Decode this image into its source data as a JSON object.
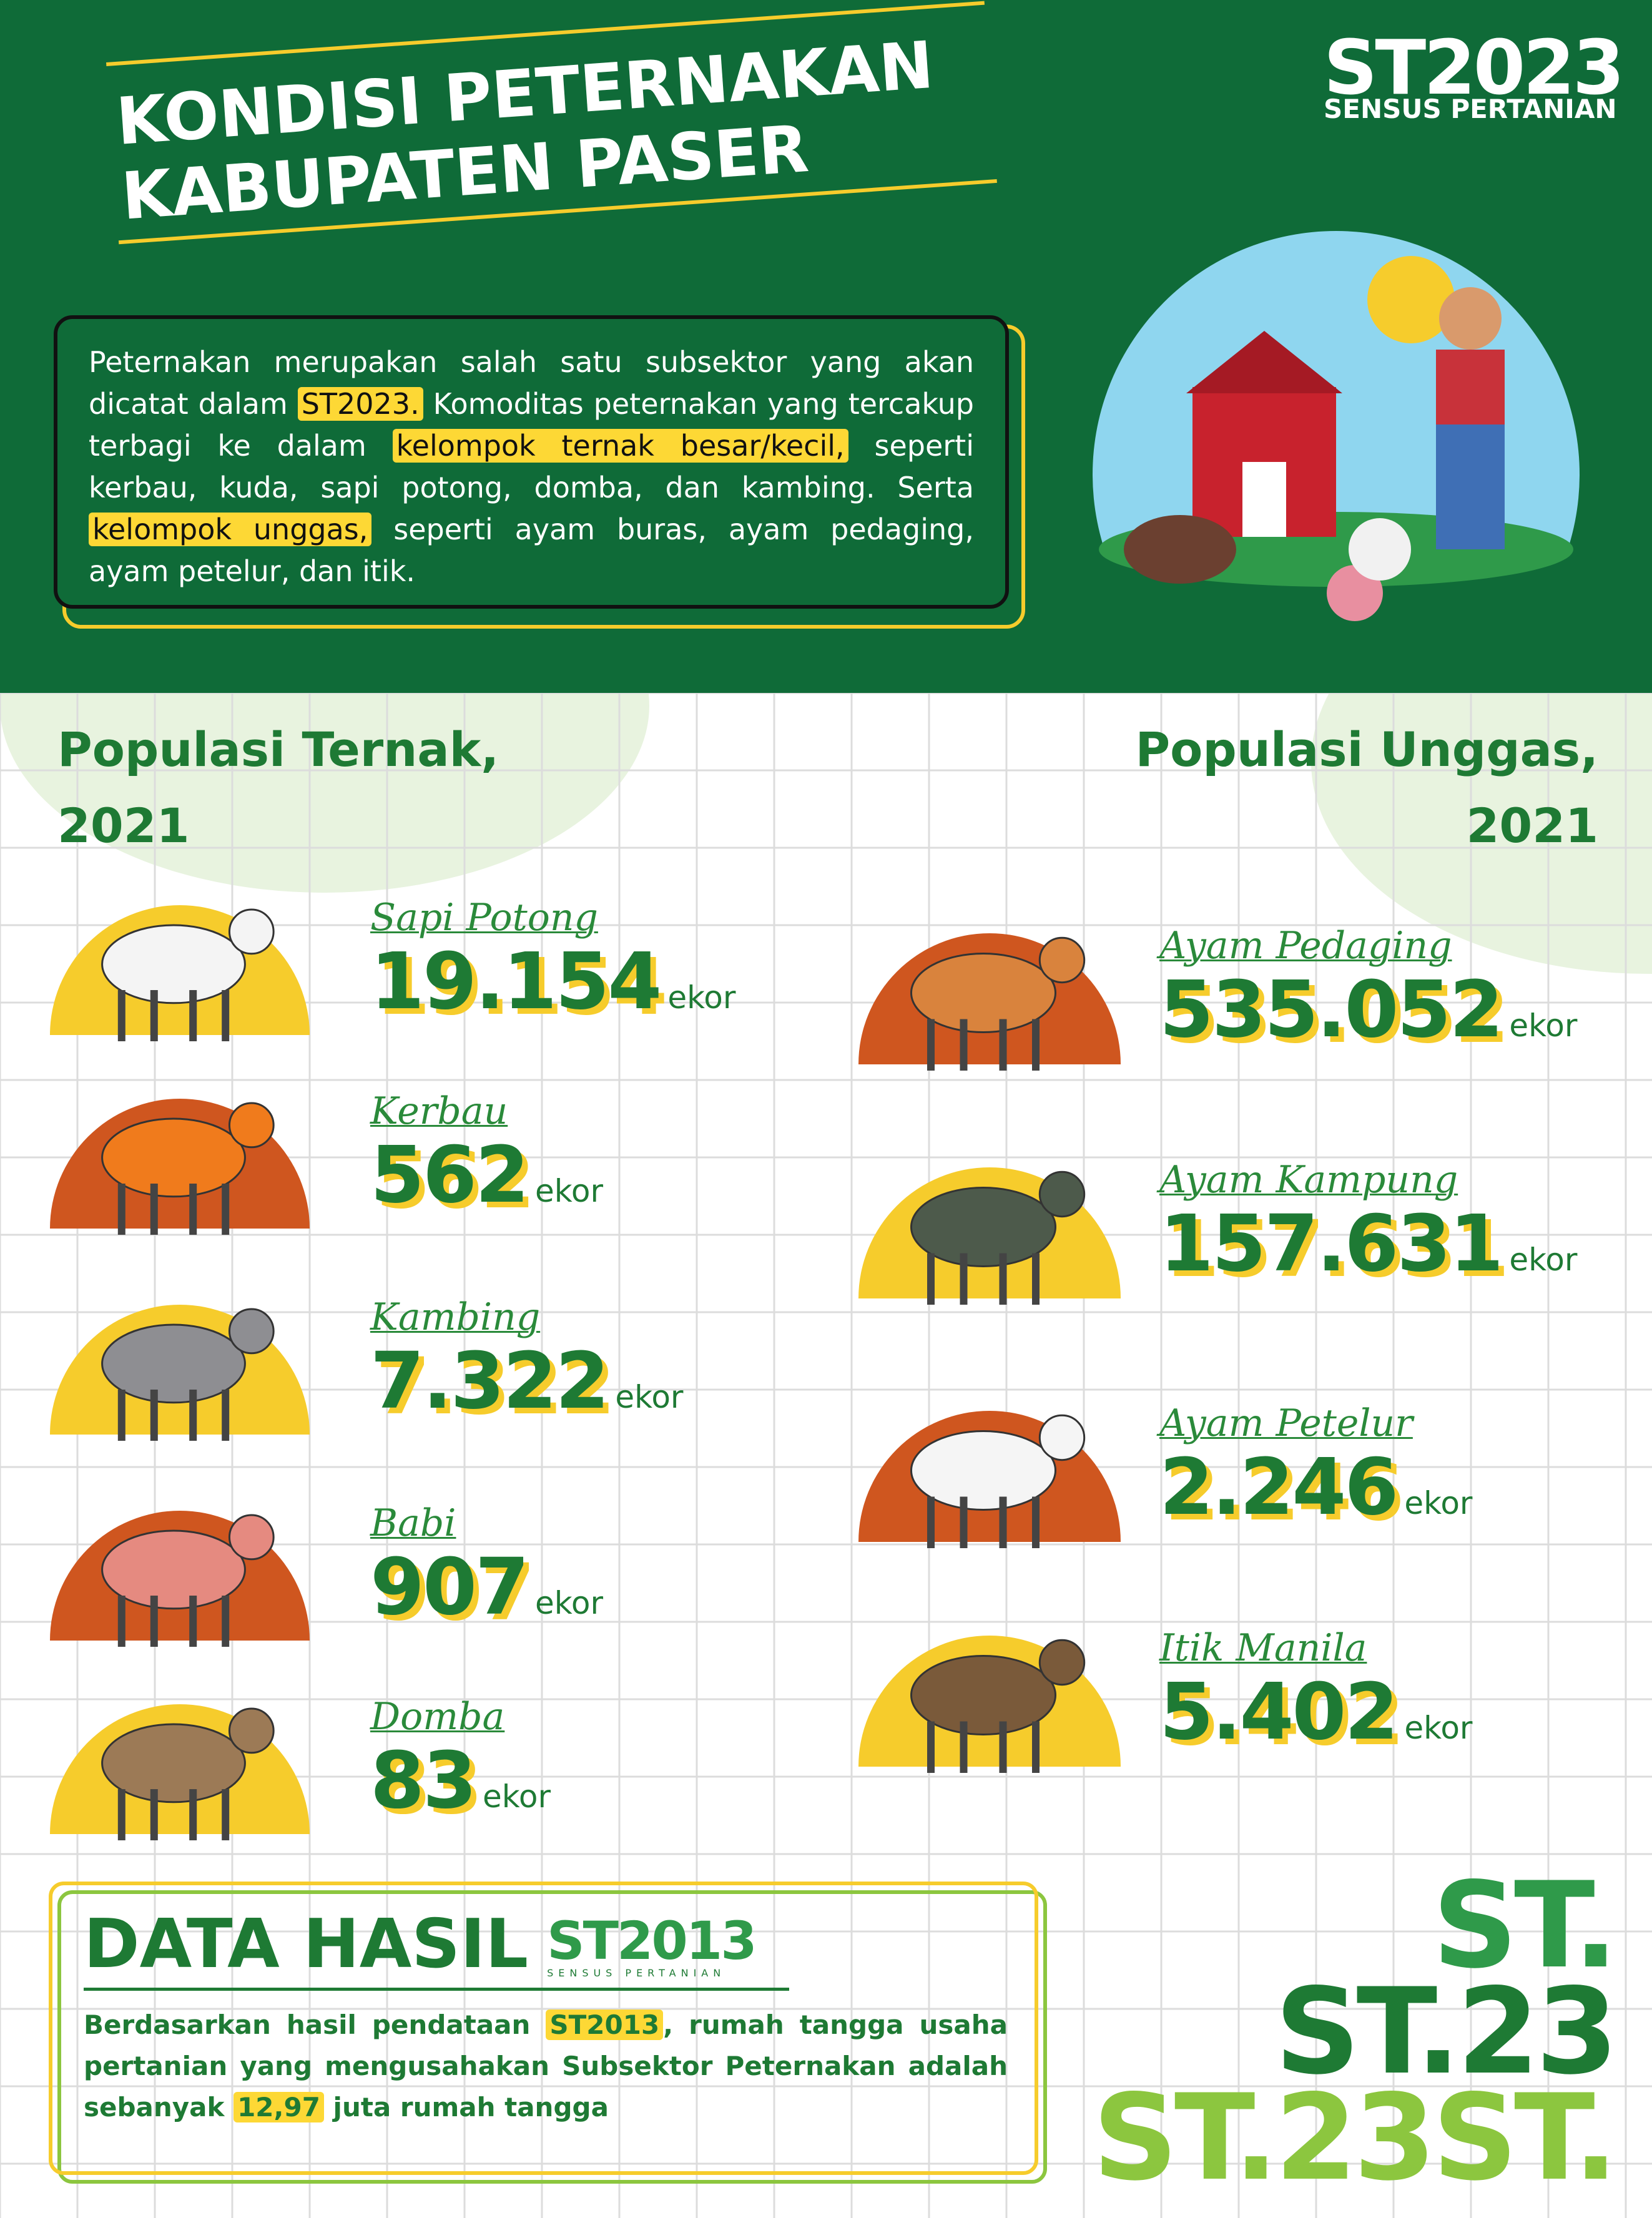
{
  "header": {
    "logo": "ST2023",
    "logo_subtitle": "SENSUS PERTANIAN",
    "title_lines": [
      "KONDISI PETERNAKAN",
      "KABUPATEN PASER"
    ]
  },
  "intro": {
    "parts": [
      {
        "text": "Peternakan merupakan salah satu subsektor yang akan dicatat dalam "
      },
      {
        "text": "ST2023.",
        "highlight": true
      },
      {
        "text": " Komoditas peternakan yang tercakup terbagi ke dalam "
      },
      {
        "text": "kelompok ternak besar/kecil,",
        "highlight": true
      },
      {
        "text": " seperti kerbau, kuda, sapi potong, domba, dan kambing. Serta "
      },
      {
        "text": "kelompok unggas,",
        "highlight": true
      },
      {
        "text": " seperti ayam buras, ayam pedaging, ayam petelur, dan itik."
      }
    ]
  },
  "livestock": {
    "title_lines": [
      "Populasi Ternak,",
      "2021"
    ],
    "items": [
      {
        "name": "Sapi Potong",
        "value": "19.154",
        "unit": "ekor",
        "color": "#f6cc2c",
        "animal_color": "#f4f4f4"
      },
      {
        "name": "Kerbau",
        "value": "562",
        "unit": "ekor",
        "color": "#cf561f",
        "animal_color": "#f07b1c"
      },
      {
        "name": "Kambing",
        "value": "7.322",
        "unit": "ekor",
        "color": "#f6cc2c",
        "animal_color": "#8e8e92"
      },
      {
        "name": "Babi",
        "value": "907",
        "unit": "ekor",
        "color": "#cf561f",
        "animal_color": "#e58a80"
      },
      {
        "name": "Domba",
        "value": "83",
        "unit": "ekor",
        "color": "#f6cc2c",
        "animal_color": "#9c7a56"
      }
    ]
  },
  "poultry": {
    "title_lines": [
      "Populasi Unggas,",
      "2021"
    ],
    "items": [
      {
        "name": "Ayam Pedaging",
        "value": "535.052",
        "unit": "ekor",
        "color": "#cf561f",
        "animal_color": "#d9833d"
      },
      {
        "name": "Ayam Kampung",
        "value": "157.631",
        "unit": "ekor",
        "color": "#f6cc2c",
        "animal_color": "#4d5a4b"
      },
      {
        "name": "Ayam Petelur",
        "value": "2.246",
        "unit": "ekor",
        "color": "#cf561f",
        "animal_color": "#f5f5f5"
      },
      {
        "name": "Itik Manila",
        "value": "5.402",
        "unit": "ekor",
        "color": "#f6cc2c",
        "animal_color": "#7a5a3a"
      }
    ]
  },
  "footer": {
    "title": "DATA HASIL",
    "logo": "ST2013",
    "logo_subtitle": "SENSUS PERTANIAN",
    "parts": [
      {
        "text": "Berdasarkan hasil pendataan "
      },
      {
        "text": "ST2013",
        "highlight": true
      },
      {
        "text": ", rumah tangga usaha pertanian yang mengusahakan Subsektor Peternakan adalah sebanyak "
      },
      {
        "text": "12,97",
        "highlight": true
      },
      {
        "text": " juta rumah tangga"
      }
    ]
  },
  "decor": {
    "lines": [
      "ST.",
      "ST.23",
      "ST.23ST."
    ]
  }
}
